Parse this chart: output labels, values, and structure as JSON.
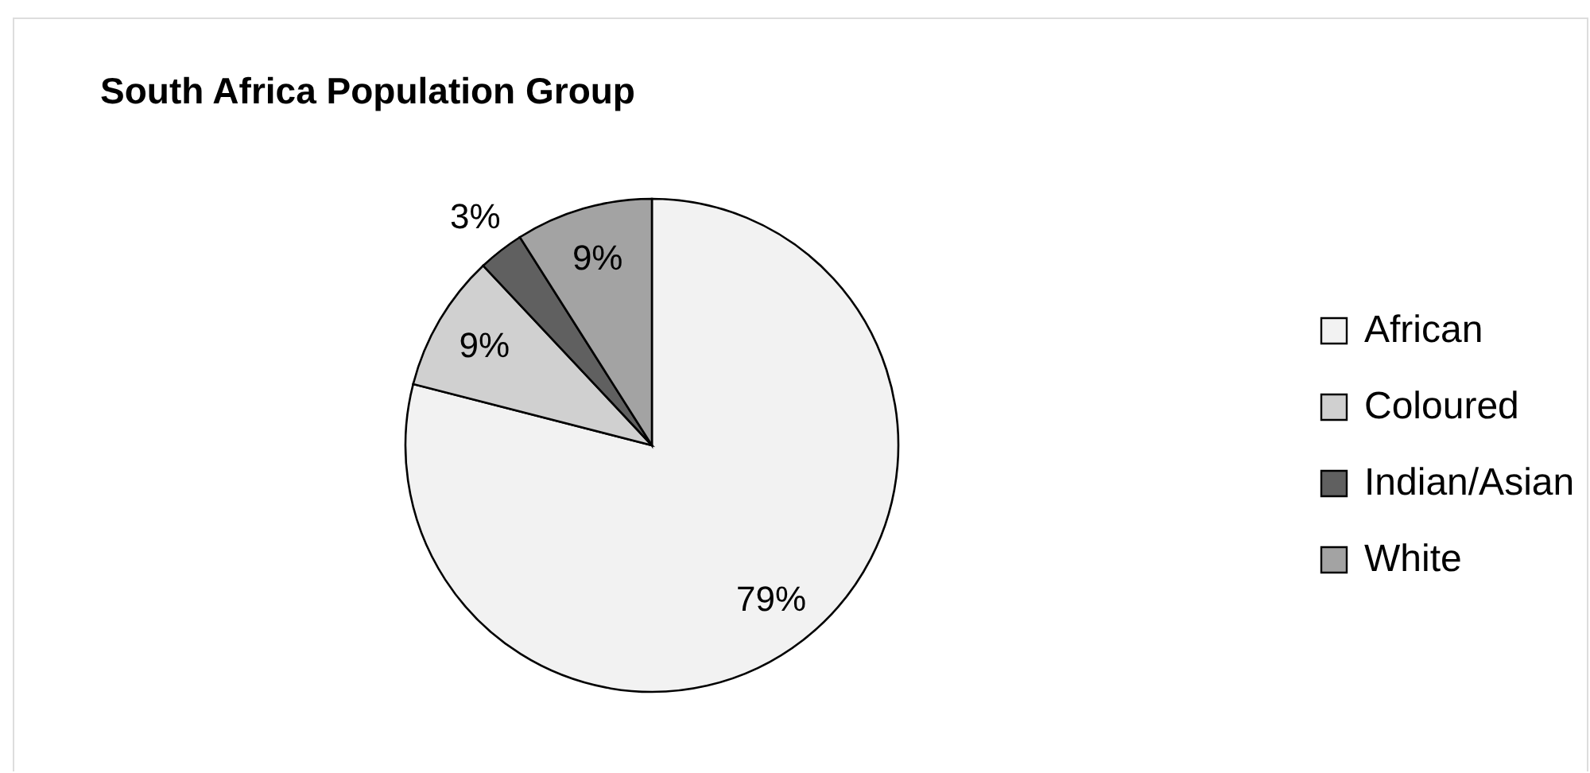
{
  "chart_data": {
    "type": "pie",
    "title": "South Africa Population Group",
    "categories": [
      "African",
      "Coloured",
      "Indian/Asian",
      "White"
    ],
    "values": [
      79,
      9,
      3,
      9
    ],
    "colors": [
      "#f2f2f2",
      "#d0d0d0",
      "#606060",
      "#a3a3a3"
    ],
    "value_labels": [
      "79%",
      "9%",
      "3%",
      "9%"
    ],
    "legend": "right"
  }
}
